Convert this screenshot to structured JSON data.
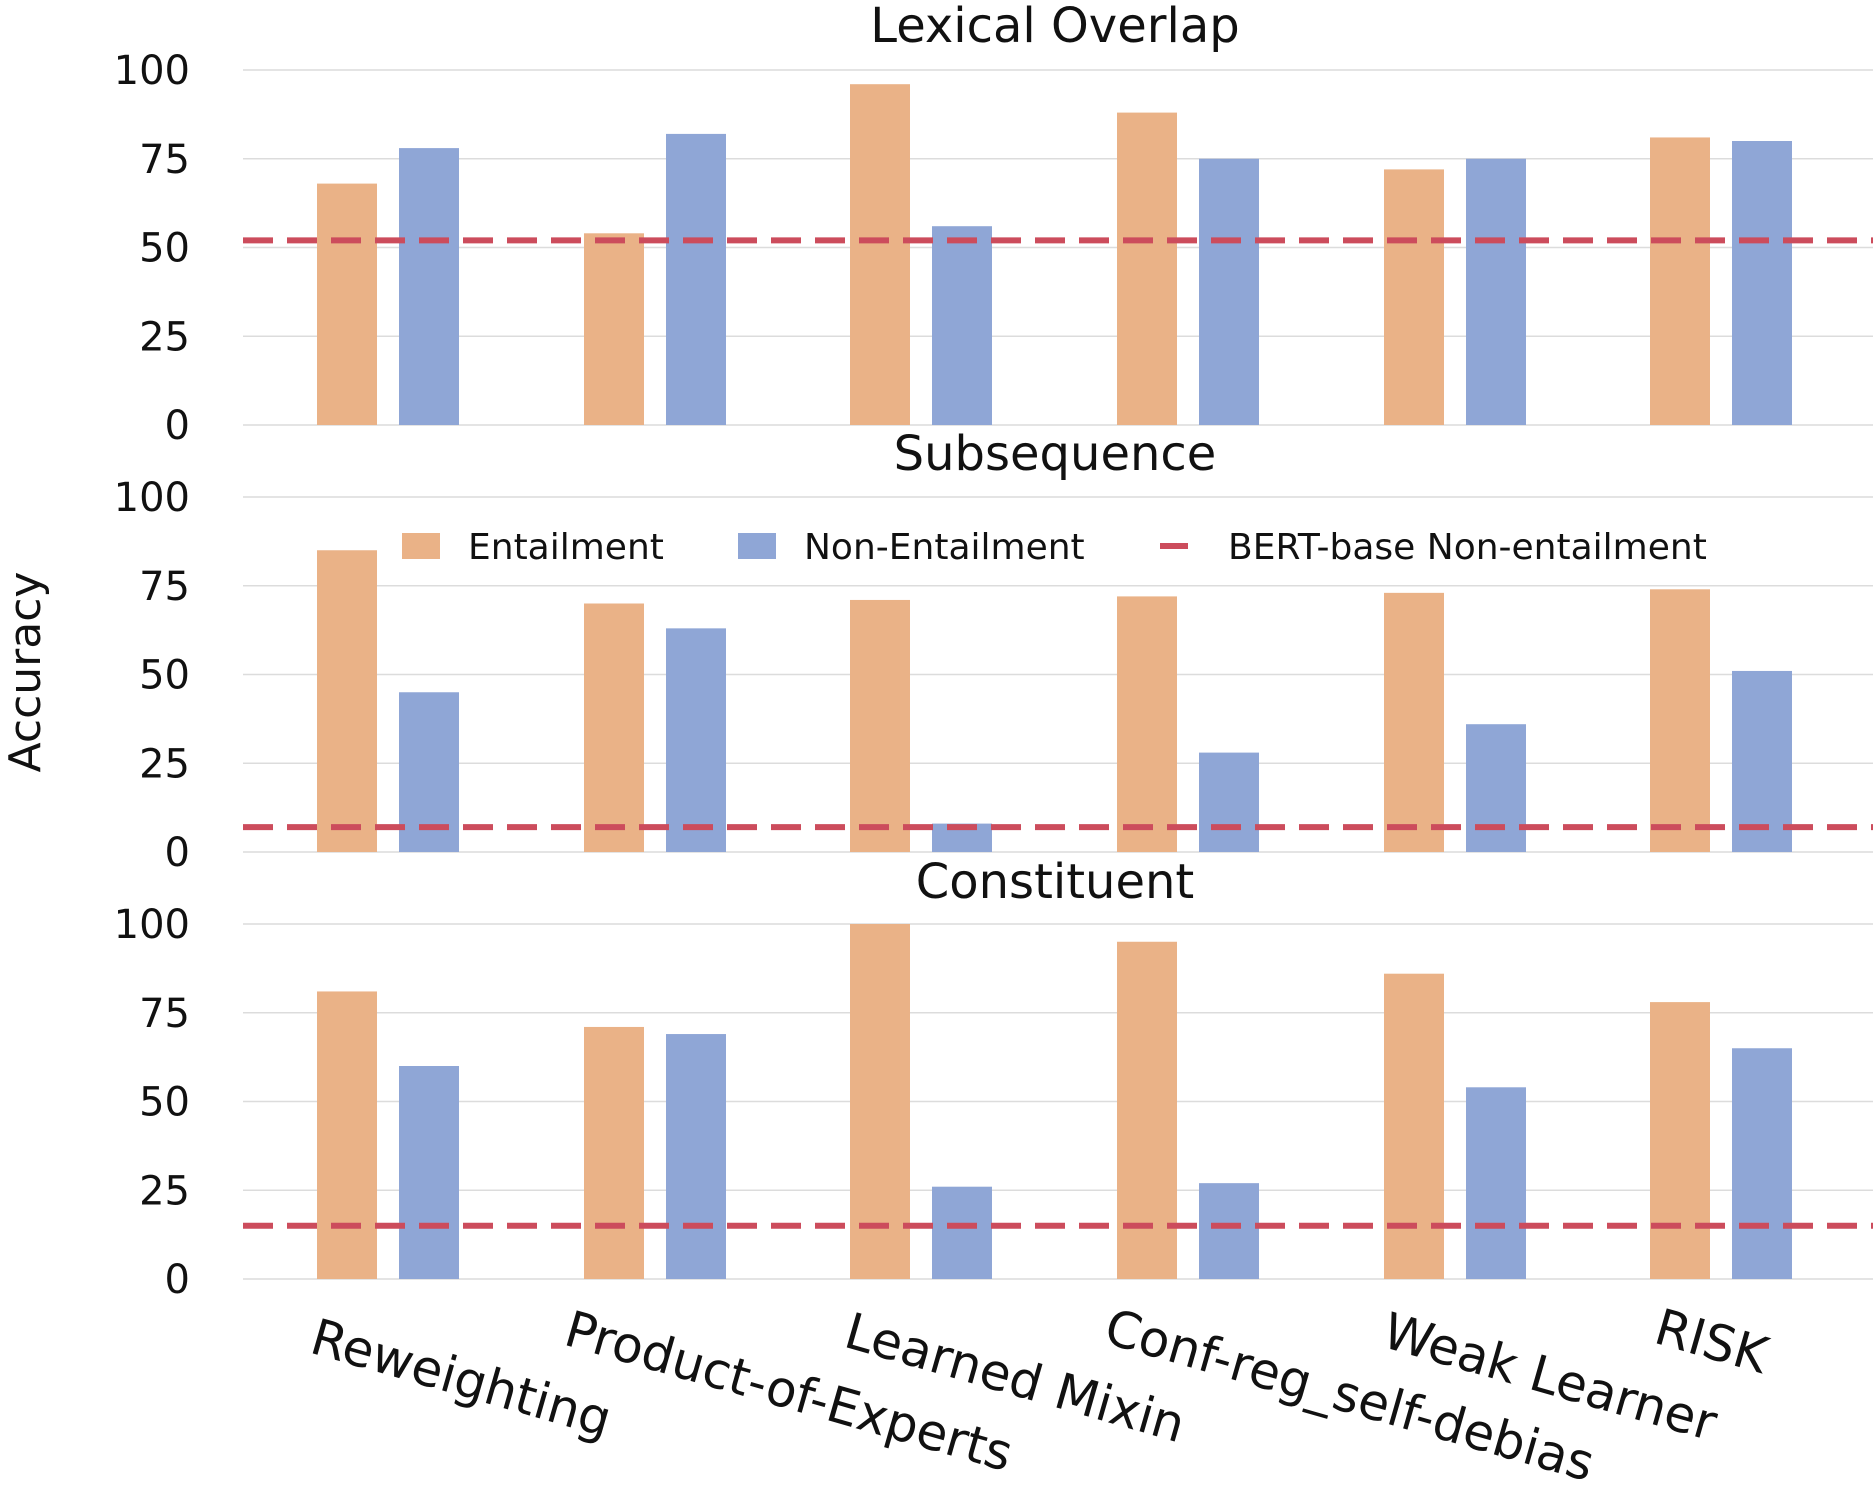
{
  "chart_data": {
    "type": "bar",
    "ylabel": "Accuracy",
    "ylim": [
      0,
      100
    ],
    "yticks": [
      "0",
      "25",
      "50",
      "75",
      "100"
    ],
    "categories": [
      "Reweighting",
      "Product-of-Experts",
      "Learned Mixin",
      "Conf-reg_self-debias",
      "Weak Learner",
      "RISK"
    ],
    "legend": {
      "placement": "inside-middle-panel-top",
      "entries": [
        "Entailment",
        "Non-Entailment",
        "BERT-base Non-entailment"
      ]
    },
    "colors": {
      "entailment": "#eab287",
      "non_entailment": "#8fa6d6",
      "baseline": "#cc4c5c",
      "grid": "#dcdcdc"
    },
    "panels": [
      {
        "title": "Lexical Overlap",
        "series": [
          {
            "name": "Entailment",
            "values": [
              68,
              54,
              96,
              88,
              72,
              81
            ]
          },
          {
            "name": "Non-Entailment",
            "values": [
              78,
              82,
              56,
              75,
              75,
              80
            ]
          }
        ],
        "baseline": 52
      },
      {
        "title": "Subsequence",
        "series": [
          {
            "name": "Entailment",
            "values": [
              85,
              70,
              71,
              72,
              73,
              74
            ]
          },
          {
            "name": "Non-Entailment",
            "values": [
              45,
              63,
              8,
              28,
              36,
              51
            ]
          }
        ],
        "baseline": 7
      },
      {
        "title": "Constituent",
        "series": [
          {
            "name": "Entailment",
            "values": [
              81,
              71,
              100,
              95,
              86,
              78
            ]
          },
          {
            "name": "Non-Entailment",
            "values": [
              60,
              69,
              26,
              27,
              54,
              65
            ]
          }
        ],
        "baseline": 15
      }
    ]
  }
}
